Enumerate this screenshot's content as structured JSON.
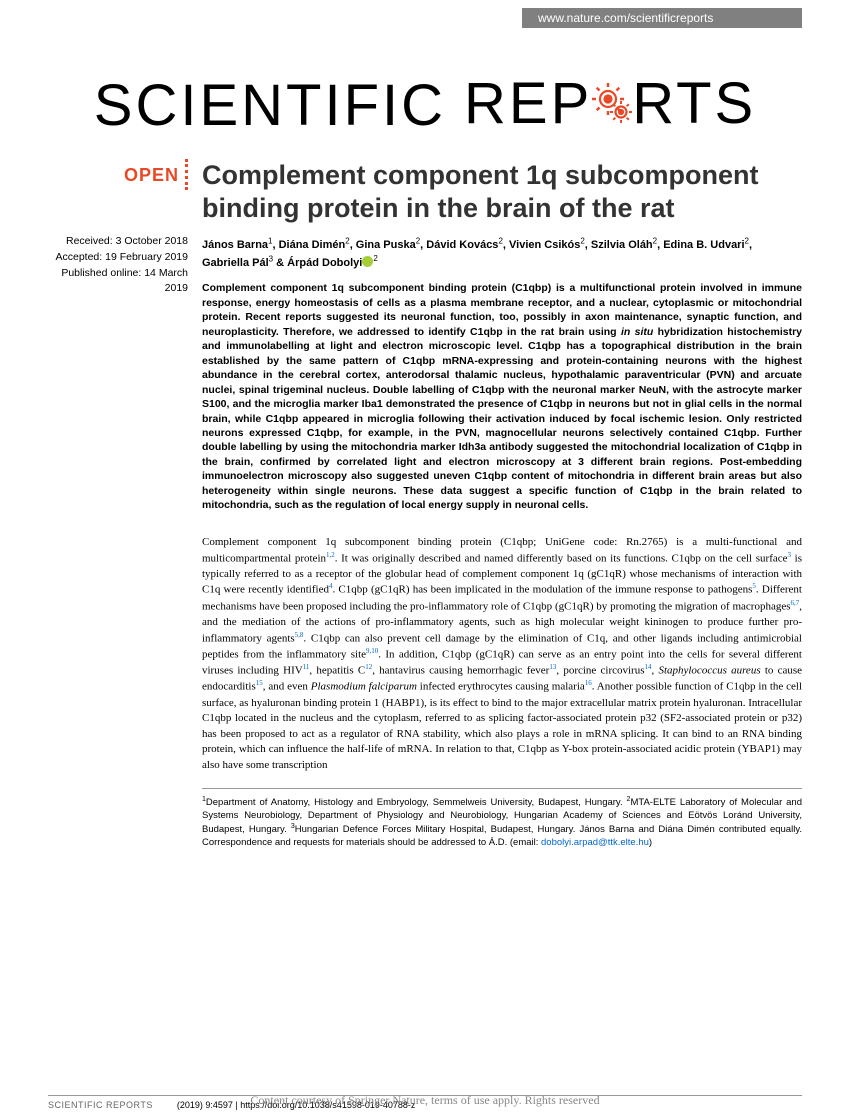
{
  "banner_url": "www.nature.com/scientificreports",
  "journal": {
    "word1": "SCIENTIFIC",
    "word2_a": "REP",
    "word2_b": "RTS"
  },
  "open_label": "OPEN",
  "dates": {
    "received": "Received: 3 October 2018",
    "accepted": "Accepted: 19 February 2019",
    "published": "Published online: 14 March 2019"
  },
  "title": "Complement component 1q subcomponent binding protein in the brain of the rat",
  "authors_html": "János Barna<sup>1</sup>, Diána Dimén<sup>2</sup>, Gina Puska<sup>2</sup>, Dávid Kovács<sup>2</sup>, Vivien Csikós<sup>2</sup>, Szilvia Oláh<sup>2</sup>, Edina B. Udvari<sup>2</sup>, Gabriella Pál<sup>3</sup> & Árpád Dobolyi",
  "author_last_sup": "2",
  "abstract": "Complement component 1q subcomponent binding protein (C1qbp) is a multifunctional protein involved in immune response, energy homeostasis of cells as a plasma membrane receptor, and a nuclear, cytoplasmic or mitochondrial protein. Recent reports suggested its neuronal function, too, possibly in axon maintenance, synaptic function, and neuroplasticity. Therefore, we addressed to identify C1qbp in the rat brain using in situ hybridization histochemistry and immunolabelling at light and electron microscopic level. C1qbp has a topographical distribution in the brain established by the same pattern of C1qbp mRNA-expressing and protein-containing neurons with the highest abundance in the cerebral cortex, anterodorsal thalamic nucleus, hypothalamic paraventricular (PVN) and arcuate nuclei, spinal trigeminal nucleus. Double labelling of C1qbp with the neuronal marker NeuN, with the astrocyte marker S100, and the microglia marker Iba1 demonstrated the presence of C1qbp in neurons but not in glial cells in the normal brain, while C1qbp appeared in microglia following their activation induced by focal ischemic lesion. Only restricted neurons expressed C1qbp, for example, in the PVN, magnocellular neurons selectively contained C1qbp. Further double labelling by using the mitochondria marker Idh3a antibody suggested the mitochondrial localization of C1qbp in the brain, confirmed by correlated light and electron microscopy at 3 different brain regions. Post-embedding immunoelectron microscopy also suggested uneven C1qbp content of mitochondria in different brain areas but also heterogeneity within single neurons. These data suggest a specific function of C1qbp in the brain related to mitochondria, such as the regulation of local energy supply in neuronal cells.",
  "body": "Complement component 1q subcomponent binding protein (C1qbp; UniGene code: Rn.2765) is a multi-functional and multicompartmental protein<sup>1,2</sup>. It was originally described and named differently based on its functions. C1qbp on the cell surface<sup>3</sup> is typically referred to as a receptor of the globular head of complement component 1q (gC1qR) whose mechanisms of interaction with C1q were recently identified<sup>4</sup>. C1qbp (gC1qR) has been implicated in the modulation of the immune response to pathogens<sup>5</sup>. Different mechanisms have been proposed including the pro-inflammatory role of C1qbp (gC1qR) by promoting the migration of macrophages<sup>6,7</sup>, and the mediation of the actions of pro-inflammatory agents, such as high molecular weight kininogen to produce further pro-inflammatory agents<sup>5,8</sup>. C1qbp can also prevent cell damage by the elimination of C1q, and other ligands including antimicrobial peptides from the inflammatory site<sup>9,10</sup>. In addition, C1qbp (gC1qR) can serve as an entry point into the cells for several different viruses including HIV<sup>11</sup>, hepatitis C<sup>12</sup>, hantavirus causing hemorrhagic fever<sup>13</sup>, porcine circovirus<sup>14</sup>, <em>Staphylococcus aureus</em> to cause endocarditis<sup>15</sup>, and even <em>Plasmodium falciparum</em> infected erythrocytes causing malaria<sup>16</sup>. Another possible function of C1qbp in the cell surface, as hyaluronan binding protein 1 (HABP1), is its effect to bind to the major extracellular matrix protein hyaluronan. Intracellular C1qbp located in the nucleus and the cytoplasm, referred to as splicing factor-associated protein p32 (SF2-associated protein or p32) has been proposed to act as a regulator of RNA stability, which also plays a role in mRNA splicing. It can bind to an RNA binding protein, which can influence the half-life of mRNA. In relation to that, C1qbp as Y-box protein-associated acidic protein (YBAP1) may also have some transcription",
  "affiliations": "<sup>1</sup>Department of Anatomy, Histology and Embryology, Semmelweis University, Budapest, Hungary. <sup>2</sup>MTA-ELTE Laboratory of Molecular and Systems Neurobiology, Department of Physiology and Neurobiology, Hungarian Academy of Sciences and Eötvös Loránd University, Budapest, Hungary. <sup>3</sup>Hungarian Defence Forces Military Hospital, Budapest, Hungary. János Barna and Diána Dimén contributed equally. Correspondence and requests for materials should be addressed to Á.D. (email: <span class=\"email\">dobolyi.arpad@ttk.elte.hu</span>)",
  "footer": {
    "journal": "SCIENTIFIC REPORTS",
    "citation": "(2019) 9:4597  | https://doi.org/10.1038/s41598-019-40788-z",
    "rights": "Content courtesy of Springer Nature, terms of use apply. Rights reserved"
  },
  "colors": {
    "accent": "#e84a27",
    "link": "#0066cc",
    "banner_bg": "#808080",
    "orcid": "#a6ce39"
  }
}
